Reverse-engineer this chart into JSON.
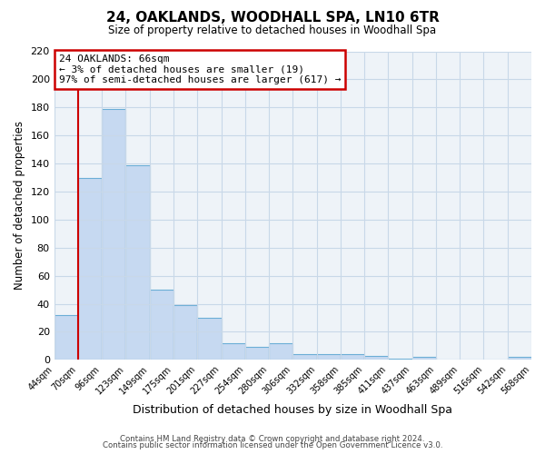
{
  "title": "24, OAKLANDS, WOODHALL SPA, LN10 6TR",
  "subtitle": "Size of property relative to detached houses in Woodhall Spa",
  "xlabel": "Distribution of detached houses by size in Woodhall Spa",
  "ylabel": "Number of detached properties",
  "bar_values": [
    32,
    130,
    179,
    139,
    50,
    39,
    30,
    12,
    9,
    12,
    4,
    4,
    4,
    3,
    1,
    2,
    0,
    0,
    0,
    2
  ],
  "bin_labels": [
    "44sqm",
    "70sqm",
    "96sqm",
    "123sqm",
    "149sqm",
    "175sqm",
    "201sqm",
    "227sqm",
    "254sqm",
    "280sqm",
    "306sqm",
    "332sqm",
    "358sqm",
    "385sqm",
    "411sqm",
    "437sqm",
    "463sqm",
    "489sqm",
    "516sqm",
    "542sqm",
    "568sqm"
  ],
  "bar_color": "#c6d9f1",
  "bar_edge_color": "#6baed6",
  "annotation_title": "24 OAKLANDS: 66sqm",
  "annotation_line1": "← 3% of detached houses are smaller (19)",
  "annotation_line2": "97% of semi-detached houses are larger (617) →",
  "marker_line_color": "#cc0000",
  "annotation_box_edge_color": "#cc0000",
  "ylim": [
    0,
    220
  ],
  "yticks": [
    0,
    20,
    40,
    60,
    80,
    100,
    120,
    140,
    160,
    180,
    200,
    220
  ],
  "grid_color": "#c8d8e8",
  "plot_bg_color": "#eef3f8",
  "footer1": "Contains HM Land Registry data © Crown copyright and database right 2024.",
  "footer2": "Contains public sector information licensed under the Open Government Licence v3.0.",
  "fig_width": 6.0,
  "fig_height": 5.0,
  "dpi": 100
}
